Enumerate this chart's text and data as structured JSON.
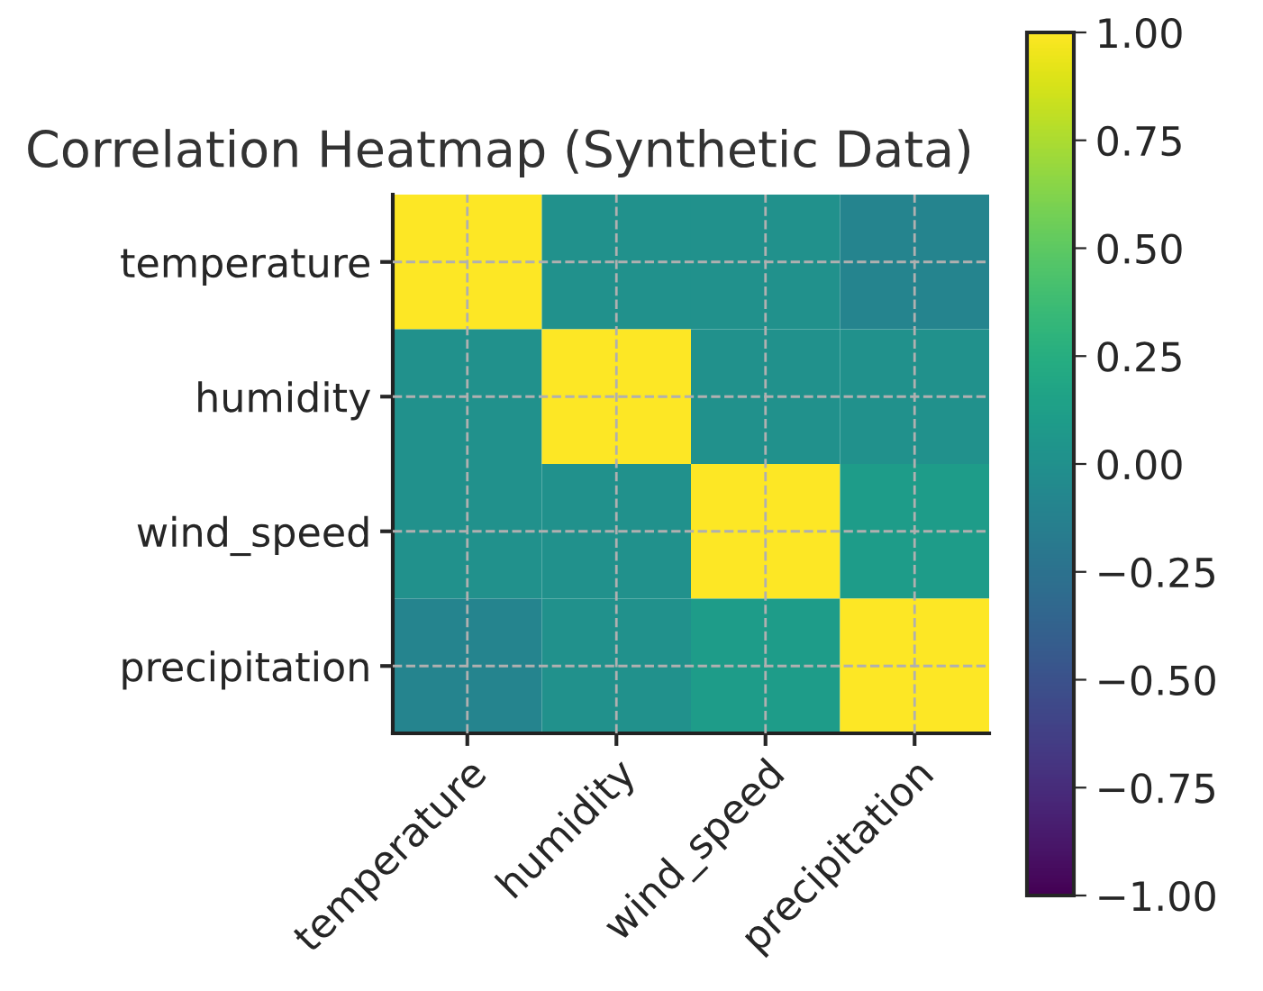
{
  "chart_data": {
    "type": "heatmap",
    "title": "Correlation Heatmap (Synthetic Data)",
    "categories": [
      "temperature",
      "humidity",
      "wind_speed",
      "precipitation"
    ],
    "y_categories": [
      "temperature",
      "humidity",
      "wind_speed",
      "precipitation"
    ],
    "cells": [
      [
        1.0,
        0.0,
        0.0,
        -0.1
      ],
      [
        0.0,
        1.0,
        0.0,
        0.0
      ],
      [
        0.0,
        0.0,
        1.0,
        0.1
      ],
      [
        -0.1,
        0.0,
        0.1,
        1.0
      ]
    ],
    "clim": [
      -1.0,
      1.0
    ],
    "cticks": [
      {
        "value": -1.0,
        "label": "−1.00"
      },
      {
        "value": -0.75,
        "label": "−0.75"
      },
      {
        "value": -0.5,
        "label": "−0.50"
      },
      {
        "value": -0.25,
        "label": "−0.25"
      },
      {
        "value": 0.0,
        "label": "0.00"
      },
      {
        "value": 0.25,
        "label": "0.25"
      },
      {
        "value": 0.5,
        "label": "0.50"
      },
      {
        "value": 0.75,
        "label": "0.75"
      },
      {
        "value": 1.0,
        "label": "1.00"
      }
    ],
    "grid": true
  }
}
